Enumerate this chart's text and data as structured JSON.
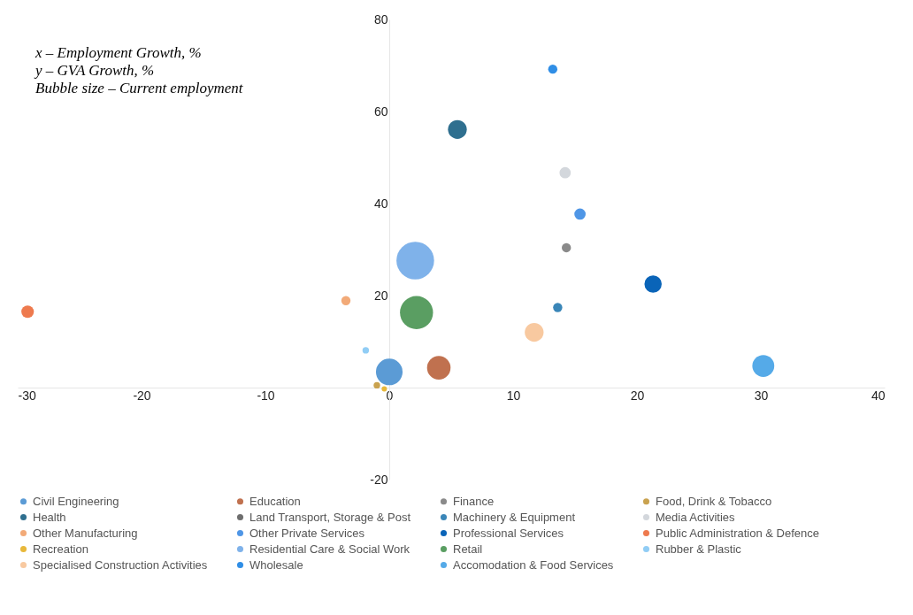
{
  "chart_data": {
    "type": "bubble",
    "annotations": [
      "x – Employment Growth, %",
      "y – GVA Growth, %",
      "Bubble size – Current employment"
    ],
    "xlim": [
      -30,
      40
    ],
    "xticks": [
      -30,
      -20,
      -10,
      0,
      10,
      20,
      30,
      40
    ],
    "ylim": [
      -20,
      80
    ],
    "yticks": [
      -20,
      20,
      40,
      60,
      80
    ],
    "grid": false,
    "legend": "bottom",
    "series": [
      {
        "name": "Civil Engineering",
        "color": "#5b9bd5",
        "x": [
          0.0
        ],
        "values": [
          3.4
        ],
        "sizes": [
          0.5
        ]
      },
      {
        "name": "Education",
        "color": "#c0714f",
        "x": [
          4.0
        ],
        "values": [
          4.3
        ],
        "sizes": [
          0.39
        ]
      },
      {
        "name": "Finance",
        "color": "#8a8a8a",
        "x": [
          14.3
        ],
        "values": [
          30.4
        ],
        "sizes": [
          0.06
        ]
      },
      {
        "name": "Food, Drink & Tobacco",
        "color": "#c9a24f",
        "x": [
          -1.0
        ],
        "values": [
          0.5
        ],
        "sizes": [
          0.03
        ]
      },
      {
        "name": "Health",
        "color": "#2f6f8f",
        "x": [
          5.5
        ],
        "values": [
          56.1
        ],
        "sizes": [
          0.25
        ]
      },
      {
        "name": "Land Transport, Storage & Post",
        "color": "#6e6e6e",
        "x": [
          null
        ],
        "values": [
          null
        ],
        "sizes": [
          null
        ]
      },
      {
        "name": "Machinery & Equipment",
        "color": "#3a86b8",
        "x": [
          13.6
        ],
        "values": [
          17.4
        ],
        "sizes": [
          0.06
        ]
      },
      {
        "name": "Media Activities",
        "color": "#d3d7dc",
        "x": [
          14.2
        ],
        "values": [
          46.7
        ],
        "sizes": [
          0.09
        ]
      },
      {
        "name": "Other Manufacturing",
        "color": "#f2aa78",
        "x": [
          -3.5
        ],
        "values": [
          18.9
        ],
        "sizes": [
          0.06
        ]
      },
      {
        "name": "Other Private Services",
        "color": "#4f96e6",
        "x": [
          15.4
        ],
        "values": [
          37.7
        ],
        "sizes": [
          0.09
        ]
      },
      {
        "name": "Professional Services",
        "color": "#0a64b8",
        "x": [
          21.3
        ],
        "values": [
          22.5
        ],
        "sizes": [
          0.21
        ]
      },
      {
        "name": "Public Administration & Defence",
        "color": "#ee7a4e",
        "x": [
          -29.2
        ],
        "values": [
          16.5
        ],
        "sizes": [
          0.11
        ]
      },
      {
        "name": "Recreation",
        "color": "#e8b83a",
        "x": [
          -0.4
        ],
        "values": [
          -0.3
        ],
        "sizes": [
          0.02
        ]
      },
      {
        "name": "Residential Care & Social Work",
        "color": "#7fb2ea",
        "x": [
          2.1
        ],
        "values": [
          27.6
        ],
        "sizes": [
          1
        ]
      },
      {
        "name": "Retail",
        "color": "#5a9e62",
        "x": [
          2.2
        ],
        "values": [
          16.3
        ],
        "sizes": [
          0.77
        ]
      },
      {
        "name": "Rubber & Plastic",
        "color": "#91cdf5",
        "x": [
          -1.9
        ],
        "values": [
          8.1
        ],
        "sizes": [
          0.03
        ]
      },
      {
        "name": "Specialised Construction Activities",
        "color": "#f8c9a0",
        "x": [
          11.7
        ],
        "values": [
          12.0
        ],
        "sizes": [
          0.25
        ]
      },
      {
        "name": "Wholesale",
        "color": "#2f8ee6",
        "x": [
          13.2
        ],
        "values": [
          69.2
        ],
        "sizes": [
          0.06
        ]
      },
      {
        "name": "Accomodation & Food Services",
        "color": "#55aae8",
        "x": [
          30.2
        ],
        "values": [
          4.7
        ],
        "sizes": [
          0.34
        ]
      }
    ]
  }
}
